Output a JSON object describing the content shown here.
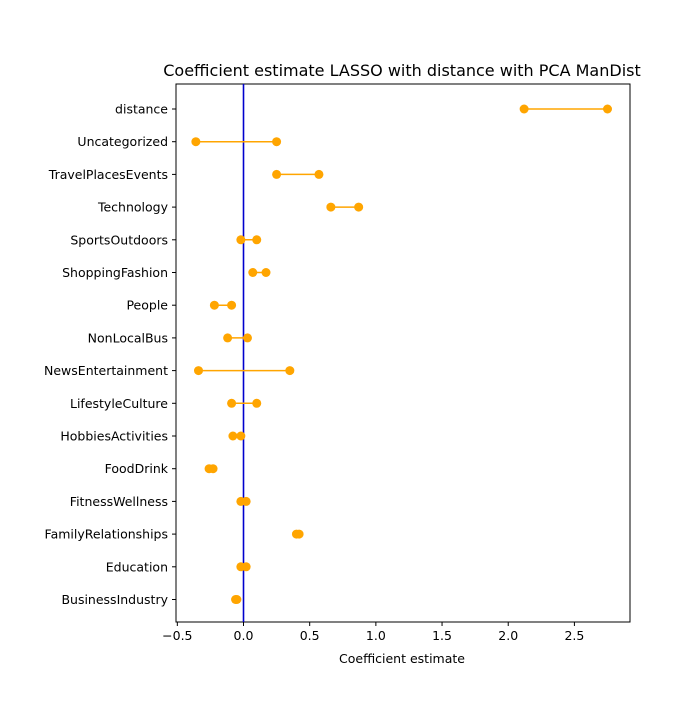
{
  "chart_data": {
    "type": "dumbbell",
    "title": "Coefficient estimate LASSO  with distance with PCA ManDist",
    "xlabel": "Coefficient estimate",
    "ylabel": "",
    "xlim": [
      -0.51,
      2.92
    ],
    "xticks": [
      -0.5,
      0.0,
      0.5,
      1.0,
      1.5,
      2.0,
      2.5
    ],
    "xtick_labels": [
      "−0.5",
      "0.0",
      "0.5",
      "1.0",
      "1.5",
      "2.0",
      "2.5"
    ],
    "reference_line_x": 0,
    "grid": false,
    "categories": [
      "distance",
      "Uncategorized",
      "TravelPlacesEvents",
      "Technology",
      "SportsOutdoors",
      "ShoppingFashion",
      "People",
      "NonLocalBus",
      "NewsEntertainment",
      "LifestyleCulture",
      "HobbiesActivities",
      "FoodDrink",
      "FitnessWellness",
      "FamilyRelationships",
      "Education",
      "BusinessIndustry"
    ],
    "intervals": [
      {
        "low": 2.12,
        "high": 2.75
      },
      {
        "low": -0.36,
        "high": 0.25
      },
      {
        "low": 0.25,
        "high": 0.57
      },
      {
        "low": 0.66,
        "high": 0.87
      },
      {
        "low": -0.02,
        "high": 0.1
      },
      {
        "low": 0.07,
        "high": 0.17
      },
      {
        "low": -0.22,
        "high": -0.09
      },
      {
        "low": -0.12,
        "high": 0.03
      },
      {
        "low": -0.34,
        "high": 0.35
      },
      {
        "low": -0.09,
        "high": 0.1
      },
      {
        "low": -0.08,
        "high": -0.02
      },
      {
        "low": -0.26,
        "high": -0.23
      },
      {
        "low": -0.02,
        "high": 0.02
      },
      {
        "low": 0.4,
        "high": 0.42
      },
      {
        "low": -0.02,
        "high": 0.02
      },
      {
        "low": -0.06,
        "high": -0.05
      }
    ],
    "colors": {
      "interval": "#ffa500",
      "reference_line": "#0000cd",
      "axis": "#000000"
    }
  }
}
